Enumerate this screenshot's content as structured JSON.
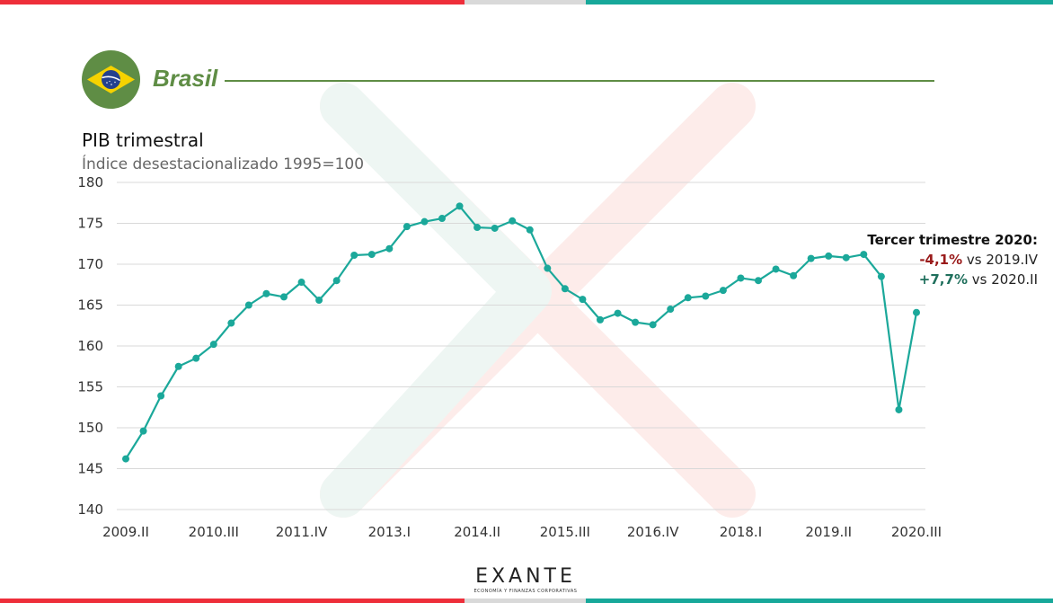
{
  "header": {
    "country": "Brasil",
    "flag_icon": "brazil-flag-icon"
  },
  "colors": {
    "red": "#ee2e3a",
    "gray": "#d9d9d9",
    "teal": "#17a89a",
    "green": "#5f8d45",
    "line": "#1ba89a"
  },
  "annotation": {
    "heading": "Tercer trimestre 2020:",
    "line1_value": "-4,1%",
    "line1_text": " vs 2019.IV",
    "line2_value": "+7,7%",
    "line2_text": " vs 2020.II"
  },
  "logo": {
    "name": "EXANTE",
    "tagline": "ECONOMÍA Y FINANZAS CORPORATIVAS"
  },
  "chart_data": {
    "type": "line",
    "title": "PIB trimestral",
    "subtitle": "Índice desestacionalizado 1995=100",
    "ylim": [
      140,
      180
    ],
    "yticks": [
      140,
      145,
      150,
      155,
      160,
      165,
      170,
      175,
      180
    ],
    "grid": true,
    "x_tick_labels": [
      "2009.II",
      "2010.III",
      "2011.IV",
      "2013.I",
      "2014.II",
      "2015.III",
      "2016.IV",
      "2018.I",
      "2019.II",
      "2020.III"
    ],
    "x": [
      "2009.II",
      "2009.III",
      "2009.IV",
      "2010.I",
      "2010.II",
      "2010.III",
      "2010.IV",
      "2011.I",
      "2011.II",
      "2011.III",
      "2011.IV",
      "2012.I",
      "2012.II",
      "2012.III",
      "2012.IV",
      "2013.I",
      "2013.II",
      "2013.III",
      "2013.IV",
      "2014.I",
      "2014.II",
      "2014.III",
      "2014.IV",
      "2015.I",
      "2015.II",
      "2015.III",
      "2015.IV",
      "2016.I",
      "2016.II",
      "2016.III",
      "2016.IV",
      "2017.I",
      "2017.II",
      "2017.III",
      "2017.IV",
      "2018.I",
      "2018.II",
      "2018.III",
      "2018.IV",
      "2019.I",
      "2019.II",
      "2019.III",
      "2019.IV",
      "2020.I",
      "2020.II",
      "2020.III"
    ],
    "values": [
      146.2,
      149.6,
      153.9,
      157.5,
      158.5,
      160.2,
      162.8,
      165.0,
      166.4,
      166.0,
      167.8,
      165.6,
      168.0,
      171.1,
      171.2,
      171.9,
      174.6,
      175.2,
      175.6,
      177.1,
      174.5,
      174.4,
      175.3,
      174.2,
      169.5,
      167.0,
      165.7,
      163.2,
      164.0,
      162.9,
      162.6,
      164.5,
      165.9,
      166.1,
      166.8,
      168.3,
      168.0,
      169.4,
      168.6,
      170.7,
      171.0,
      170.8,
      171.2,
      168.5,
      152.2,
      164.1
    ]
  }
}
